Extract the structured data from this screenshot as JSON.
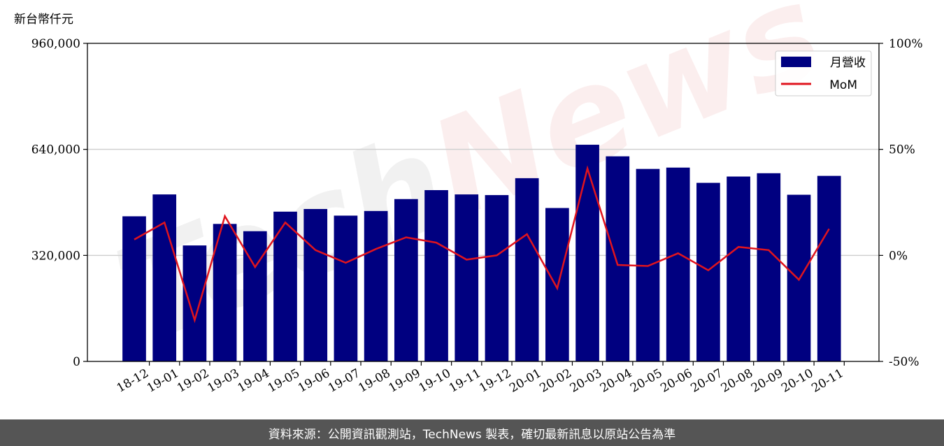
{
  "watermark": {
    "part1": "Tech",
    "part2": "News"
  },
  "footer": {
    "text": "資料來源：公開資訊觀測站，TechNews 製表，確切最新訊息以原站公告為準"
  },
  "chart_data": {
    "type": "bar",
    "ylabel_left_unit": "新台幣仟元",
    "categories": [
      "18-12",
      "19-01",
      "19-02",
      "19-03",
      "19-04",
      "19-05",
      "19-06",
      "19-07",
      "19-08",
      "19-09",
      "19-10",
      "19-11",
      "19-12",
      "20-01",
      "20-02",
      "20-03",
      "20-04",
      "20-05",
      "20-06",
      "20-07",
      "20-08",
      "20-09",
      "20-10",
      "20-11"
    ],
    "series": [
      {
        "name": "月營收",
        "kind": "bar",
        "axis": "left",
        "color": "#000080",
        "values": [
          438000,
          504000,
          350000,
          415000,
          393000,
          452000,
          460000,
          440000,
          454000,
          490000,
          517000,
          504000,
          502000,
          553000,
          463000,
          654000,
          619000,
          581000,
          585000,
          539000,
          558000,
          568000,
          503000,
          560000
        ]
      },
      {
        "name": "MoM",
        "kind": "line",
        "axis": "right",
        "color": "#e0141e",
        "unit": "%",
        "values": [
          7.5,
          15.5,
          -30.5,
          18.5,
          -5.5,
          15.5,
          2.5,
          -3.5,
          3.0,
          8.5,
          6.0,
          -2.0,
          0.0,
          10.0,
          -15.5,
          41.0,
          -4.5,
          -5.0,
          1.0,
          -7.0,
          4.0,
          2.5,
          -11.5,
          12.5
        ]
      }
    ],
    "left_axis": {
      "ylim": [
        0,
        960000
      ],
      "ticks": [
        "0",
        "320,000",
        "640,000",
        "960,000"
      ],
      "tick_values": [
        0,
        320000,
        640000,
        960000
      ]
    },
    "right_axis": {
      "ylim": [
        -50,
        100
      ],
      "ticks": [
        "-50%",
        "0%",
        "50%",
        "100%"
      ],
      "tick_values": [
        -50,
        0,
        50,
        100
      ]
    },
    "grid": "horizontal",
    "legend_position": "top-right"
  }
}
